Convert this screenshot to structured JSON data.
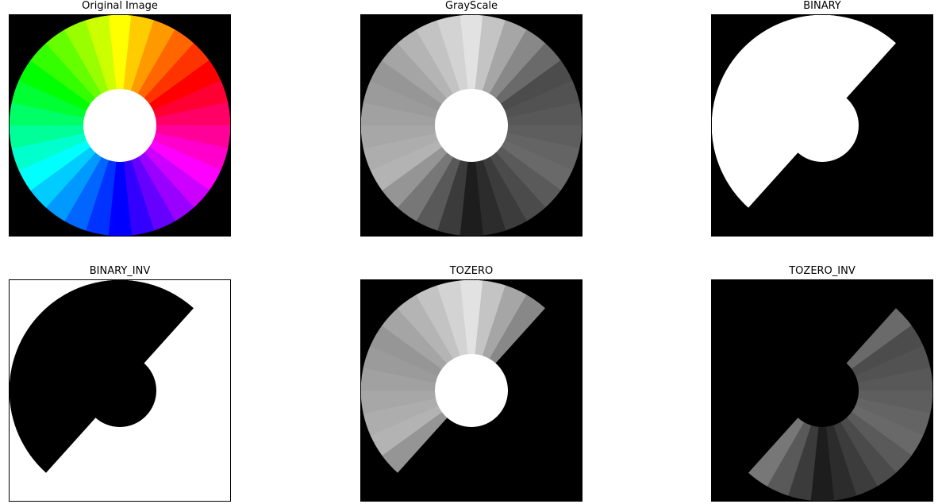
{
  "figure": {
    "panels": [
      {
        "id": "original",
        "title": "Original Image",
        "mode": "color",
        "background": "#000000",
        "center_fill": "#ffffff"
      },
      {
        "id": "grayscale",
        "title": "GrayScale",
        "mode": "gray",
        "background": "#000000",
        "center_fill": "#ffffff"
      },
      {
        "id": "binary",
        "title": "BINARY",
        "mode": "binary",
        "background": "#000000",
        "center_fill": "#ffffff"
      },
      {
        "id": "binary_inv",
        "title": "BINARY_INV",
        "mode": "binary_inv",
        "background": "#ffffff",
        "center_fill": "#000000"
      },
      {
        "id": "tozero",
        "title": "TOZERO",
        "mode": "tozero",
        "background": "#000000",
        "center_fill": "#ffffff"
      },
      {
        "id": "tozero_inv",
        "title": "TOZERO_INV",
        "mode": "tozero_inv",
        "background": "#000000",
        "center_fill": "#000000"
      }
    ],
    "threshold": 127,
    "wheel_colors": [
      "#ffff00",
      "#ffcc00",
      "#ff9900",
      "#ff6600",
      "#ff3300",
      "#ff0000",
      "#ff0033",
      "#ff0066",
      "#ff0099",
      "#ff00cc",
      "#ff00ff",
      "#cc00ff",
      "#9900ff",
      "#6600ff",
      "#3300ff",
      "#0000ff",
      "#0033ff",
      "#0066ff",
      "#0099ff",
      "#00ccff",
      "#00ffff",
      "#00ffcc",
      "#00ff99",
      "#00ff66",
      "#00ff33",
      "#00ff00",
      "#33ff00",
      "#66ff00",
      "#99ff00",
      "#ccff00"
    ]
  }
}
